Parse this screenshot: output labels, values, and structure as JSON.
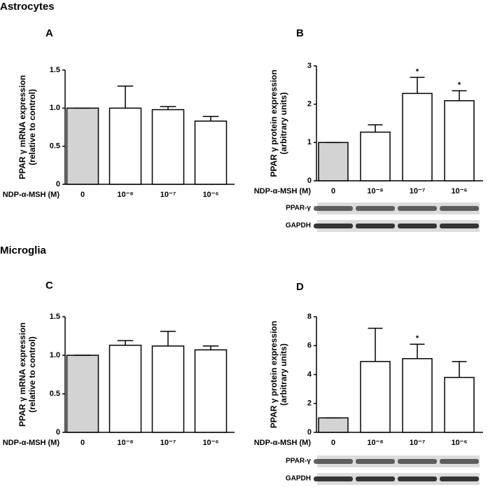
{
  "sections": [
    "Astrocytes",
    "Microglia"
  ],
  "chart_data": [
    {
      "type": "bar",
      "label": "A",
      "ylabel": [
        "PPAR γ mRNA expression",
        "(relative to control)"
      ],
      "xlabel": "NDP-α-MSH (M)",
      "categories": [
        "0",
        "10⁻⁸",
        "10⁻⁷",
        "10⁻⁶"
      ],
      "values": [
        1.0,
        1.0,
        0.98,
        0.83
      ],
      "errors": [
        0,
        0.29,
        0.04,
        0.06
      ],
      "colors": [
        "#d3d3d3",
        "#ffffff",
        "#ffffff",
        "#ffffff"
      ],
      "ylim": [
        0,
        1.5
      ],
      "yticks": [
        0,
        0.5,
        {
          "value": 1,
          "label": "1.0"
        },
        1.5
      ]
    },
    {
      "type": "bar",
      "label": "B",
      "ylabel": [
        "PPAR γ protein expression",
        "(arbitrary units)"
      ],
      "xlabel": "NDP-α-MSH (M)",
      "categories": [
        "0",
        "10⁻⁸",
        "10⁻⁷",
        "10⁻⁶"
      ],
      "values": [
        1.0,
        1.27,
        2.28,
        2.09
      ],
      "errors": [
        0,
        0.19,
        0.42,
        0.26
      ],
      "significance": [
        null,
        null,
        "*",
        "*"
      ],
      "colors": [
        "#d3d3d3",
        "#ffffff",
        "#ffffff",
        "#ffffff"
      ],
      "ylim": [
        0,
        3
      ],
      "yticks": [
        0,
        1,
        2,
        3
      ],
      "blots": [
        "PPAR-γ",
        "GAPDH"
      ]
    },
    {
      "type": "bar",
      "label": "C",
      "ylabel": [
        "PPAR γ mRNA expression",
        "(relative to control)"
      ],
      "xlabel": "NDP-α-MSH (M)",
      "categories": [
        "0",
        "10⁻⁸",
        "10⁻⁷",
        "10⁻⁶"
      ],
      "values": [
        1.0,
        1.13,
        1.12,
        1.07
      ],
      "errors": [
        0,
        0.06,
        0.19,
        0.05
      ],
      "colors": [
        "#d3d3d3",
        "#ffffff",
        "#ffffff",
        "#ffffff"
      ],
      "ylim": [
        0,
        1.5
      ],
      "yticks": [
        0,
        0.5,
        {
          "value": 1,
          "label": "1.0"
        },
        1.5
      ]
    },
    {
      "type": "bar",
      "label": "D",
      "ylabel": [
        "PPAR γ protein expression",
        "(arbitrary units)"
      ],
      "xlabel": "NDP-α-MSH (M)",
      "categories": [
        "0",
        "10⁻⁸",
        "10⁻⁷",
        "10⁻⁶"
      ],
      "values": [
        1.0,
        4.9,
        5.1,
        3.8
      ],
      "errors": [
        0,
        2.3,
        1.0,
        1.1
      ],
      "significance": [
        null,
        null,
        "*",
        null
      ],
      "colors": [
        "#d3d3d3",
        "#ffffff",
        "#ffffff",
        "#ffffff"
      ],
      "ylim": [
        0,
        8
      ],
      "yticks": [
        0,
        2,
        4,
        6,
        8
      ],
      "blots": [
        "PPAR-γ",
        "GAPDH"
      ]
    }
  ]
}
